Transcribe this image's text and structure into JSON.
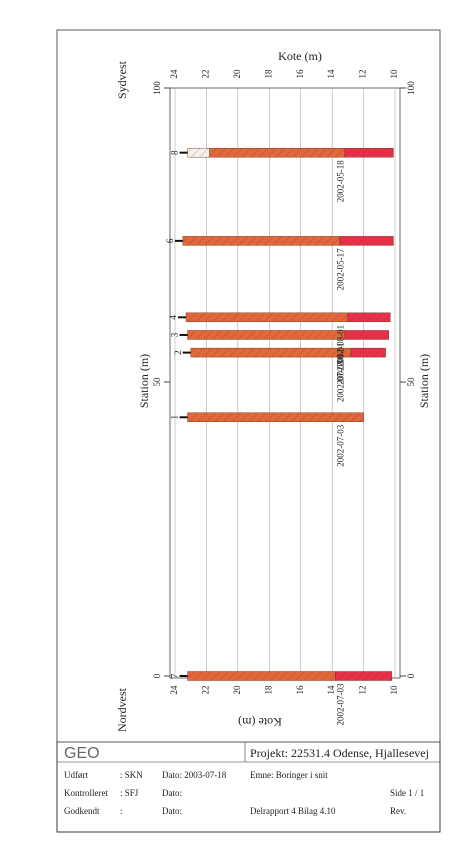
{
  "chart": {
    "kote_label": "Kote (m)",
    "station_label": "Station (m)",
    "left_label": "Nordvest",
    "right_label": "Sydvest",
    "kote_ticks": [
      24,
      22,
      20,
      18,
      16,
      14,
      12,
      10
    ],
    "station_ticks": [
      0,
      50,
      100
    ],
    "boreholes": [
      {
        "name": "7",
        "station": 0,
        "top": 23.2,
        "date": "2002-07-03",
        "layers": [
          {
            "bottom": 13.8,
            "color": "#e0683a"
          },
          {
            "bottom": 10.2,
            "color": "#e8304a"
          }
        ]
      },
      {
        "name": "1",
        "station": 44,
        "top": 23.2,
        "date": "2002-07-03",
        "layers": [
          {
            "bottom": 12.0,
            "color": "#e0683a"
          }
        ]
      },
      {
        "name": "2",
        "station": 55,
        "top": 23.0,
        "date": "2002-07-03",
        "layers": [
          {
            "bottom": 12.8,
            "color": "#e0683a"
          },
          {
            "bottom": 10.6,
            "color": "#e8304a"
          }
        ]
      },
      {
        "name": "3",
        "station": 58,
        "top": 23.2,
        "date": "2002-08-01",
        "layers": [
          {
            "bottom": 13.2,
            "color": "#e0683a"
          },
          {
            "bottom": 10.4,
            "color": "#e8304a"
          }
        ]
      },
      {
        "name": "4",
        "station": 61,
        "top": 23.3,
        "date": "2002-08-01",
        "layers": [
          {
            "bottom": 13.0,
            "color": "#e0683a"
          },
          {
            "bottom": 10.3,
            "color": "#e8304a"
          }
        ]
      },
      {
        "name": "6",
        "station": 74,
        "top": 23.5,
        "date": "2002-05-17",
        "layers": [
          {
            "bottom": 13.5,
            "color": "#e0683a"
          },
          {
            "bottom": 10.1,
            "color": "#e8304a"
          }
        ]
      },
      {
        "name": "8",
        "station": 89,
        "top": 23.2,
        "date": "2002-05-18",
        "layers": [
          {
            "bottom": 21.8,
            "color": "#f4f0ea"
          },
          {
            "bottom": 13.2,
            "color": "#e0683a"
          },
          {
            "bottom": 10.1,
            "color": "#e8304a"
          }
        ]
      }
    ]
  },
  "footer": {
    "logo": "GEO",
    "project": "Projekt: 22531.4 Odense, Hjallesevej",
    "rows": [
      [
        "Udført",
        ": SKN",
        "Dato: 2003-07-18",
        "Emne: Boringer i snit",
        ""
      ],
      [
        "Kontrolleret",
        ": SFJ",
        "Dato:",
        "",
        "Side 1 / 1"
      ],
      [
        "Godkendt",
        ":",
        "Dato:",
        "Delrapport 4     Bilag 4.10",
        "Rev."
      ]
    ]
  }
}
